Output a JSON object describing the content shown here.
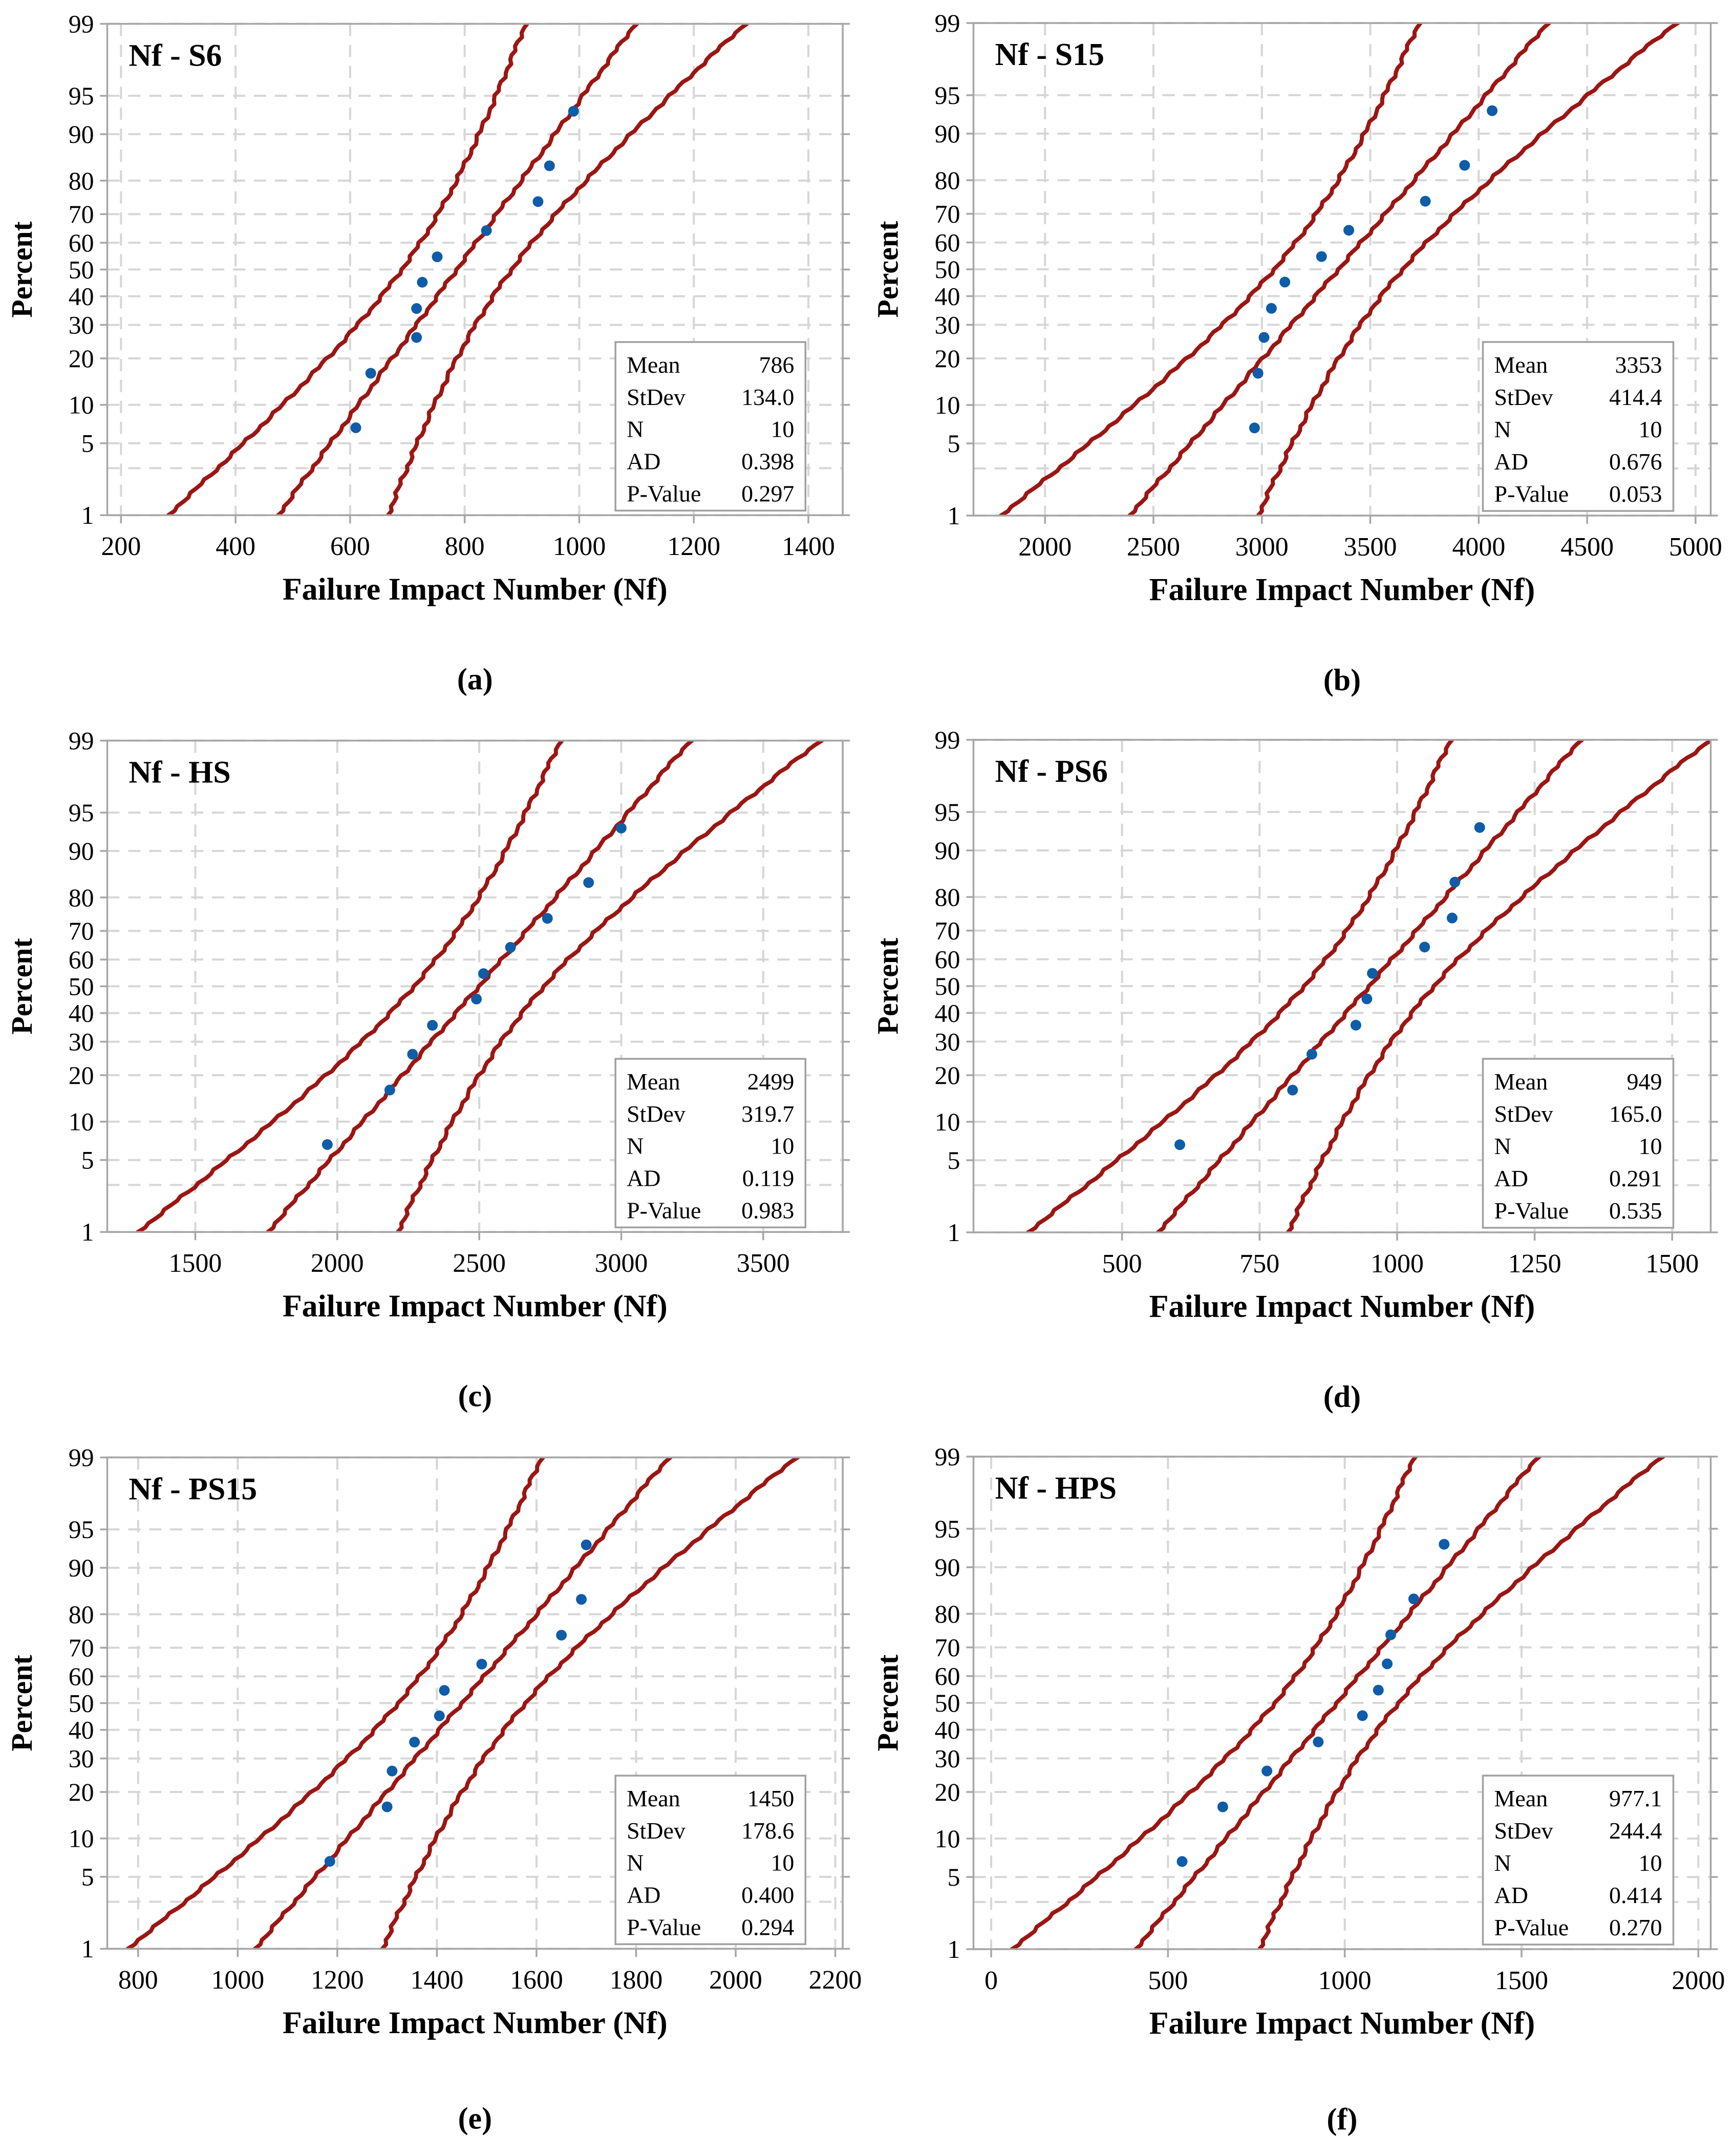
{
  "figure": {
    "xlabel": "Failure Impact Number (Nf)",
    "ylabel": "Percent",
    "percent_axis_ticks": [
      1,
      5,
      10,
      20,
      30,
      40,
      50,
      60,
      70,
      80,
      90,
      95,
      99
    ],
    "minor_percent_ticks": [
      3
    ],
    "stat_labels": [
      "Mean",
      "StDev",
      "N",
      "AD",
      "P-Value"
    ],
    "colors": {
      "point": "#0f5ca8",
      "curve": "#9b1613",
      "grid": "#d6d6d6",
      "frame": "#a6a6a6",
      "box_border": "#a0a0a0",
      "text": "#000000",
      "background": "#ffffff"
    }
  },
  "chart_data": [
    {
      "type": "scatter",
      "panel": "a",
      "caption": "(a)",
      "title": "Nf - S6",
      "xlabel": "Failure Impact Number (Nf)",
      "ylabel": "Percent",
      "xlim": [
        176,
        1460
      ],
      "xticks": [
        200,
        400,
        600,
        800,
        1000,
        1200,
        1400
      ],
      "percents": [
        6.7,
        16.3,
        26.0,
        35.6,
        45.2,
        54.8,
        64.4,
        74.0,
        83.7,
        93.3
      ],
      "x": [
        610,
        636,
        716,
        716,
        726,
        752,
        838,
        928,
        948,
        990
      ],
      "fit": {
        "mean": 786,
        "stdev": 134.0,
        "n": 10
      },
      "stats": {
        "Mean": "786",
        "StDev": "134.0",
        "N": "10",
        "AD": "0.398",
        "P-Value": "0.297"
      }
    },
    {
      "type": "scatter",
      "panel": "b",
      "caption": "(b)",
      "title": "Nf - S15",
      "xlabel": "Failure Impact Number (Nf)",
      "ylabel": "Percent",
      "xlim": [
        1670,
        5070
      ],
      "xticks": [
        2000,
        2500,
        3000,
        3500,
        4000,
        4500,
        5000
      ],
      "percents": [
        6.7,
        16.3,
        26.0,
        35.6,
        45.2,
        54.8,
        64.4,
        74.0,
        83.7,
        93.3
      ],
      "x": [
        2966,
        2982,
        3010,
        3044,
        3106,
        3275,
        3401,
        3754,
        3935,
        4062
      ],
      "fit": {
        "mean": 3353,
        "stdev": 414.4,
        "n": 10
      },
      "stats": {
        "Mean": "3353",
        "StDev": "414.4",
        "N": "10",
        "AD": "0.676",
        "P-Value": "0.053"
      }
    },
    {
      "type": "scatter",
      "panel": "c",
      "caption": "(c)",
      "title": "Nf - HS",
      "xlabel": "Failure Impact Number (Nf)",
      "ylabel": "Percent",
      "xlim": [
        1190,
        3780
      ],
      "xticks": [
        1500,
        2000,
        2500,
        3000,
        3500
      ],
      "percents": [
        6.7,
        16.3,
        26.0,
        35.6,
        45.2,
        54.8,
        64.4,
        74.0,
        83.7,
        93.3
      ],
      "x": [
        1965,
        2185,
        2265,
        2335,
        2490,
        2515,
        2610,
        2740,
        2885,
        3000
      ],
      "fit": {
        "mean": 2499,
        "stdev": 319.7,
        "n": 10
      },
      "stats": {
        "Mean": "2499",
        "StDev": "319.7",
        "N": "10",
        "AD": "0.119",
        "P-Value": "0.983"
      }
    },
    {
      "type": "scatter",
      "panel": "d",
      "caption": "(d)",
      "title": "Nf - PS6",
      "xlabel": "Failure Impact Number (Nf)",
      "ylabel": "Percent",
      "xlim": [
        230,
        1570
      ],
      "xticks": [
        500,
        750,
        1000,
        1250,
        1500
      ],
      "percents": [
        6.7,
        16.3,
        26.0,
        35.6,
        45.2,
        54.8,
        64.4,
        74.0,
        83.7,
        93.3
      ],
      "x": [
        605,
        810,
        845,
        925,
        945,
        955,
        1050,
        1100,
        1105,
        1150
      ],
      "fit": {
        "mean": 949,
        "stdev": 165.0,
        "n": 10
      },
      "stats": {
        "Mean": "949",
        "StDev": "165.0",
        "N": "10",
        "AD": "0.291",
        "P-Value": "0.535"
      }
    },
    {
      "type": "scatter",
      "panel": "e",
      "caption": "(e)",
      "title": "Nf - PS15",
      "xlabel": "Failure Impact Number (Nf)",
      "ylabel": "Percent",
      "xlim": [
        738,
        2215
      ],
      "xticks": [
        800,
        1000,
        1200,
        1400,
        1600,
        1800,
        2000,
        2200
      ],
      "percents": [
        6.7,
        16.3,
        26.0,
        35.6,
        45.2,
        54.8,
        64.4,
        74.0,
        83.7,
        93.3
      ],
      "x": [
        1185,
        1300,
        1310,
        1355,
        1405,
        1415,
        1490,
        1650,
        1690,
        1700
      ],
      "fit": {
        "mean": 1450,
        "stdev": 178.6,
        "n": 10
      },
      "stats": {
        "Mean": "1450",
        "StDev": "178.6",
        "N": "10",
        "AD": "0.400",
        "P-Value": "0.294"
      }
    },
    {
      "type": "scatter",
      "panel": "f",
      "caption": "(f)",
      "title": "Nf - HPS",
      "xlabel": "Failure Impact Number (Nf)",
      "ylabel": "Percent",
      "xlim": [
        -50,
        2035
      ],
      "xticks": [
        0,
        500,
        1000,
        1500,
        2000
      ],
      "percents": [
        6.7,
        16.3,
        26.0,
        35.6,
        45.2,
        54.8,
        64.4,
        74.0,
        83.7,
        93.3
      ],
      "x": [
        540,
        655,
        780,
        925,
        1050,
        1095,
        1120,
        1130,
        1195,
        1281
      ],
      "fit": {
        "mean": 977.1,
        "stdev": 244.4,
        "n": 10
      },
      "stats": {
        "Mean": "977.1",
        "StDev": "244.4",
        "N": "10",
        "AD": "0.414",
        "P-Value": "0.270"
      }
    }
  ]
}
